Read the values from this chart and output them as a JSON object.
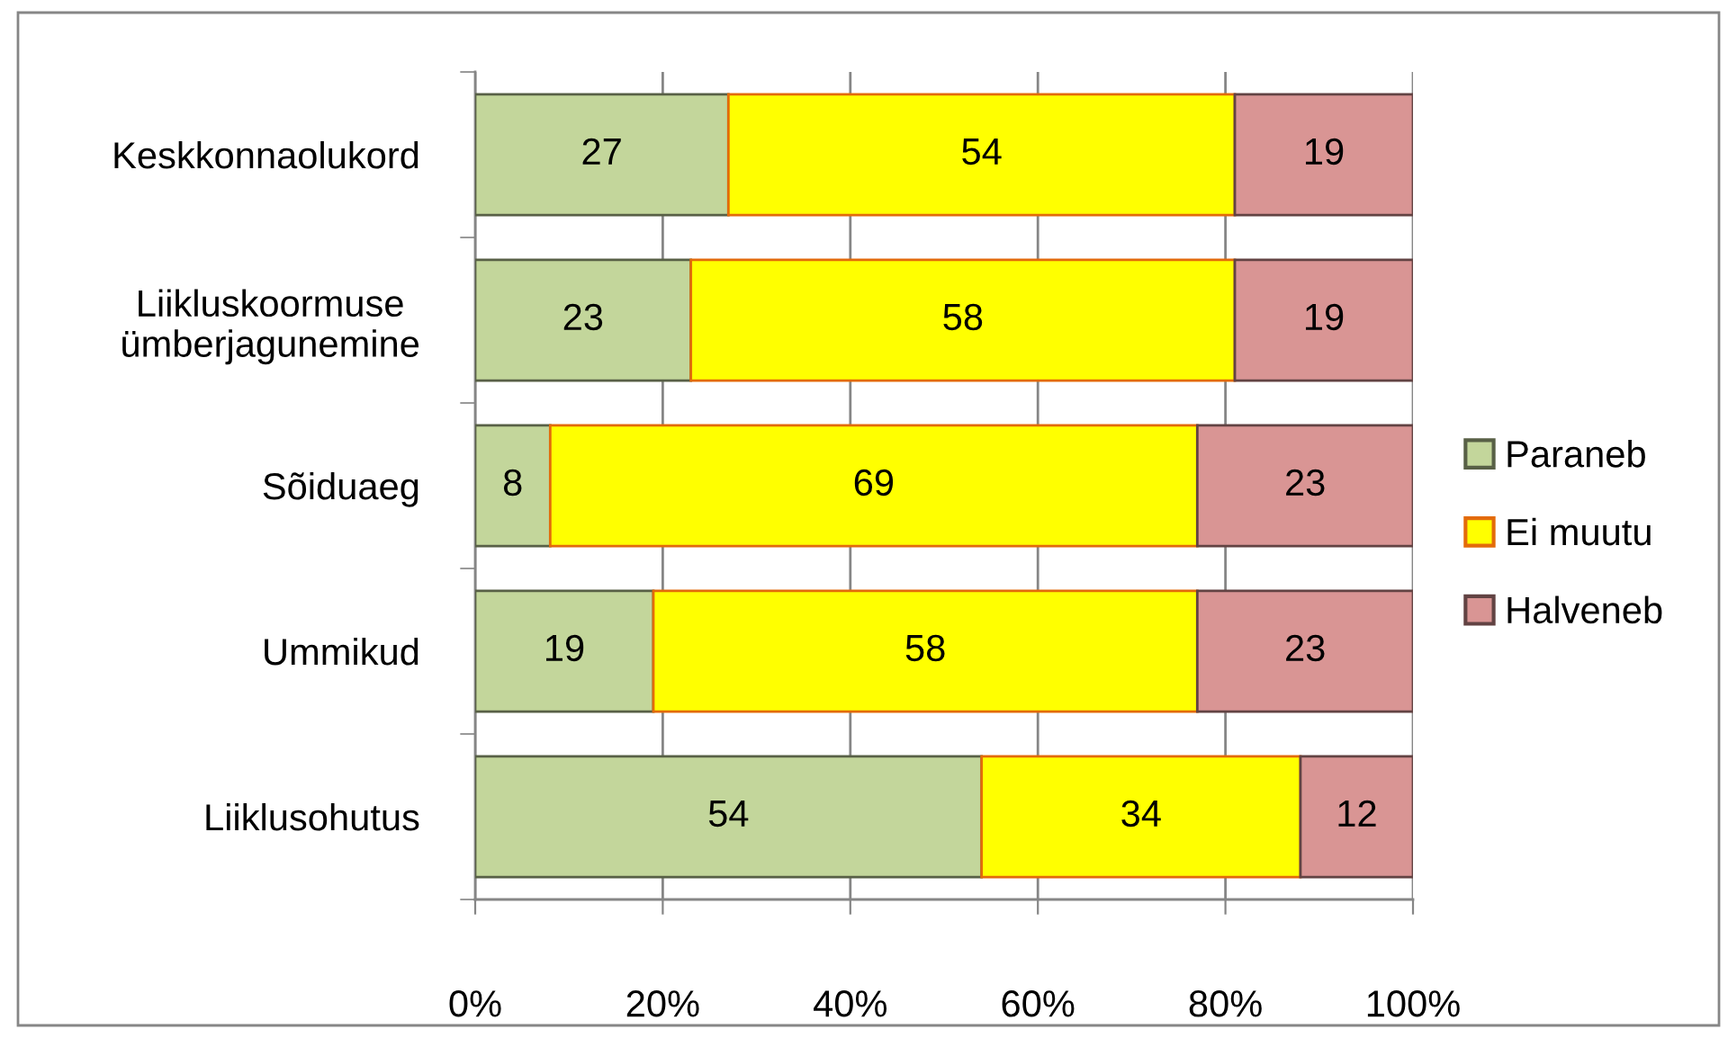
{
  "chart_data": {
    "type": "bar",
    "orientation": "horizontal",
    "stacked": true,
    "categories": [
      "Keskkonnaolukord",
      "Liikluskoormuse\nümberjagunemine",
      "Sõiduaeg",
      "Ummikud",
      "Liiklusohutus"
    ],
    "series": [
      {
        "name": "Paraneb",
        "color": "#c3d69b",
        "values": [
          27,
          23,
          8,
          19,
          54
        ]
      },
      {
        "name": "Ei muutu",
        "color": "#ffff00",
        "values": [
          54,
          58,
          69,
          58,
          34
        ]
      },
      {
        "name": "Halveneb",
        "color": "#d99594",
        "values": [
          19,
          19,
          23,
          23,
          12
        ]
      }
    ],
    "xlim": [
      0,
      100
    ],
    "xticks": [
      {
        "value": 0,
        "label": "0%"
      },
      {
        "value": 20,
        "label": "20%"
      },
      {
        "value": 40,
        "label": "40%"
      },
      {
        "value": 60,
        "label": "60%"
      },
      {
        "value": 80,
        "label": "80%"
      },
      {
        "value": 100,
        "label": "100%"
      }
    ],
    "grid": "x",
    "legend": "right",
    "data_labels": true
  }
}
